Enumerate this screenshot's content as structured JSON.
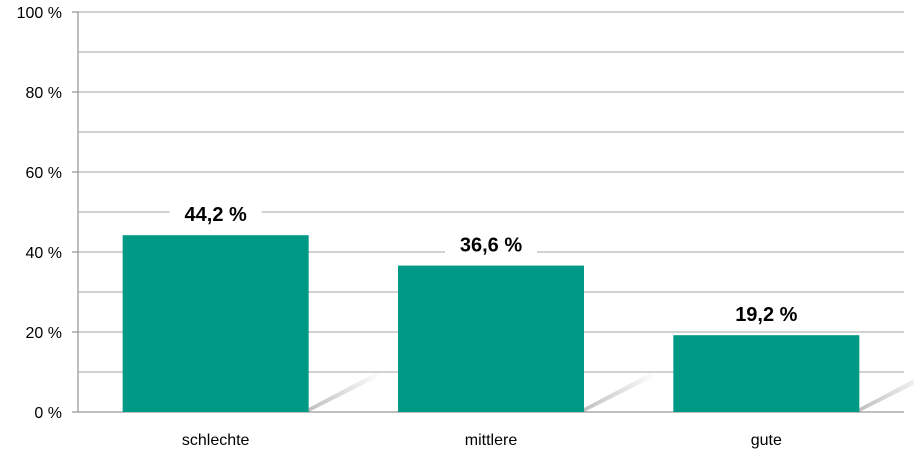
{
  "chart_data": {
    "type": "bar",
    "categories": [
      "schlechte",
      "mittlere",
      "gute"
    ],
    "values": [
      44.2,
      36.6,
      19.2
    ],
    "data_labels": [
      "44,2 %",
      "36,6 %",
      "19,2 %"
    ],
    "y_ticks": [
      0,
      20,
      40,
      60,
      80,
      100
    ],
    "y_tick_labels": [
      "0 %",
      "20 %",
      "40 %",
      "60 %",
      "80 %",
      "100 %"
    ],
    "ylim": [
      0,
      100
    ],
    "minor_gridlines": [
      10,
      30,
      50,
      70,
      90
    ],
    "grid": true,
    "legend": "none",
    "title": "",
    "xlabel": "",
    "ylabel": ""
  },
  "colors": {
    "bar": "#009985",
    "gridline": "#a6a6a6",
    "axis": "#7f7f7f",
    "shadow": "#bfbfbf",
    "label_background": "#ffffff"
  }
}
